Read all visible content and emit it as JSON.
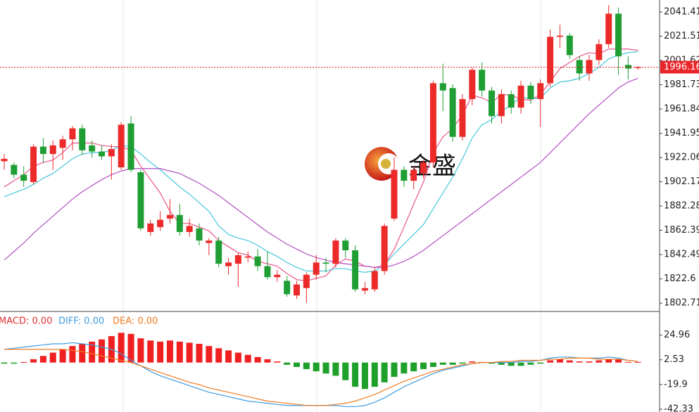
{
  "chart_data": [
    {
      "type": "candlestick",
      "watermark": "金盛",
      "up_color": "#ec2a2a",
      "down_color": "#1f9e34",
      "ylim": [
        1797.6,
        2051.2
      ],
      "yticks": [
        2041.41,
        2021.51,
        2001.62,
        1981.73,
        1961.84,
        1941.95,
        1922.06,
        1902.17,
        1882.28,
        1862.39,
        1842.49,
        1822.6,
        1802.71
      ],
      "grid": true,
      "last_price": 1996.16,
      "open": [
        1919,
        1916,
        1908,
        1902,
        1931,
        1925,
        1930,
        1937,
        1946,
        1932,
        1927,
        1923,
        1914,
        1950,
        1910,
        1861,
        1865,
        1872,
        1875,
        1861,
        1864,
        1852,
        1854,
        1833,
        1835,
        1840,
        1841,
        1833,
        1824,
        1821,
        1809,
        1815,
        1826,
        1836,
        1835,
        1854,
        1846,
        1813,
        1814,
        1829,
        1872,
        1912,
        1903,
        1909,
        1918,
        1983,
        1979,
        1939,
        1970,
        1994,
        1977,
        1956,
        1974,
        1963,
        1981,
        1970,
        1983,
        2021,
        2022,
        2002,
        1991,
        2002,
        2015,
        2040,
        1998,
        1995.5
      ],
      "high": [
        1925,
        1918,
        1915,
        1933,
        1938,
        1936,
        1940,
        1948,
        1949,
        1936,
        1932,
        1933,
        1951,
        1956,
        1912,
        1871,
        1878,
        1888,
        1884,
        1872,
        1868,
        1856,
        1857,
        1840,
        1844,
        1845,
        1847,
        1845,
        1830,
        1825,
        1821,
        1828,
        1842,
        1840,
        1856,
        1856,
        1850,
        1820,
        1832,
        1868,
        1922,
        1915,
        1915,
        1920,
        1985,
        1999,
        1982,
        1974,
        1996,
        2000,
        1980,
        1978,
        1977,
        1985,
        1984,
        1986,
        2027,
        2031,
        2024,
        2005,
        2006,
        2019,
        2047,
        2045,
        2005,
        1997
      ],
      "low": [
        1912,
        1905,
        1898,
        1900,
        1918,
        1912,
        1920,
        1928,
        1924,
        1922,
        1920,
        1904,
        1912,
        1910,
        1862,
        1858,
        1862,
        1868,
        1858,
        1857,
        1850,
        1842,
        1832,
        1826,
        1816,
        1836,
        1829,
        1822,
        1820,
        1808,
        1806,
        1803,
        1822,
        1828,
        1832,
        1840,
        1812,
        1810,
        1812,
        1826,
        1870,
        1898,
        1896,
        1905,
        1914,
        1960,
        1935,
        1936,
        1965,
        1972,
        1950,
        1950,
        1958,
        1958,
        1966,
        1947,
        1980,
        2012,
        2003,
        1985,
        1985,
        1998,
        2012,
        1990,
        1986,
        1994
      ],
      "close": [
        1921,
        1908,
        1903,
        1931,
        1925,
        1932,
        1937,
        1946,
        1928,
        1927,
        1923,
        1929,
        1949,
        1912,
        1864,
        1868,
        1871,
        1875,
        1861,
        1866,
        1854,
        1854,
        1835,
        1836,
        1842,
        1841,
        1833,
        1824,
        1826,
        1810,
        1818,
        1826,
        1836,
        1835,
        1854,
        1846,
        1814,
        1815,
        1829,
        1866,
        1912,
        1903,
        1912,
        1918,
        1983,
        1977,
        1939,
        1970,
        1994,
        1977,
        1956,
        1974,
        1963,
        1981,
        1970,
        1983,
        2021,
        2022,
        2006,
        1991,
        2002,
        2015,
        2040,
        2005,
        1995,
        1996.16
      ],
      "ma": [
        {
          "color": "#e8558a",
          "values": [
            1898,
            1903,
            1908,
            1915,
            1918,
            1920,
            1926,
            1934,
            1934,
            1934,
            1932,
            1931,
            1931,
            1928,
            1915,
            1904,
            1893,
            1878,
            1868,
            1868,
            1865,
            1862,
            1854,
            1849,
            1844,
            1842,
            1837,
            1835,
            1833,
            1827,
            1822,
            1821,
            1823,
            1825,
            1834,
            1839,
            1837,
            1833,
            1832,
            1834,
            1847,
            1865,
            1884,
            1902,
            1926,
            1939,
            1946,
            1957,
            1973,
            1971,
            1967,
            1974,
            1973,
            1970,
            1969,
            1974,
            1984,
            1995,
            2000,
            2005,
            2008,
            2007,
            2011,
            2011,
            2011,
            2010
          ]
        },
        {
          "color": "#45c6da",
          "values": [
            1890,
            1893,
            1896,
            1900,
            1905,
            1909,
            1915,
            1921,
            1925,
            1926,
            1926,
            1928,
            1932,
            1931,
            1925,
            1918,
            1912,
            1905,
            1898,
            1892,
            1885,
            1878,
            1866,
            1859,
            1856,
            1854,
            1850,
            1845,
            1841,
            1836,
            1832,
            1829,
            1829,
            1829,
            1831,
            1831,
            1829,
            1828,
            1829,
            1834,
            1843,
            1851,
            1859,
            1867,
            1880,
            1893,
            1906,
            1921,
            1938,
            1949,
            1953,
            1960,
            1965,
            1972,
            1970,
            1971,
            1979,
            1984,
            1985,
            1987,
            1991,
            1996,
            2003,
            2006,
            2008,
            2009
          ]
        },
        {
          "color": "#b24fc2",
          "values": [
            1838,
            1845,
            1852,
            1860,
            1867,
            1874,
            1881,
            1888,
            1894,
            1899,
            1904,
            1908,
            1911,
            1913,
            1913,
            1913,
            1913,
            1911,
            1909,
            1905,
            1901,
            1896,
            1891,
            1885,
            1879,
            1873,
            1867,
            1861,
            1856,
            1851,
            1847,
            1843,
            1840,
            1838,
            1836,
            1835,
            1834,
            1833,
            1832,
            1832,
            1834,
            1837,
            1841,
            1846,
            1852,
            1858,
            1864,
            1870,
            1876,
            1882,
            1888,
            1894,
            1900,
            1906,
            1912,
            1918,
            1926,
            1934,
            1942,
            1950,
            1958,
            1965,
            1972,
            1979,
            1984,
            1987
          ]
        }
      ]
    },
    {
      "type": "macd",
      "legend": [
        {
          "text": "MACD: 0.00",
          "color": "#e03030"
        },
        {
          "text": "DIFF: 0.00",
          "color": "#3d9be0"
        },
        {
          "text": "DEA: 0.00",
          "color": "#f07a20"
        }
      ],
      "ylim": [
        -44.9,
        45.1
      ],
      "yticks": [
        24.96,
        2.53,
        -19.9,
        -42.33
      ],
      "grid": true,
      "up_color": "#f02020",
      "down_color": "#1fa02a",
      "hist": [
        -1,
        -1,
        0.5,
        3,
        6,
        9,
        12,
        15,
        17,
        19,
        21,
        24,
        27,
        26,
        22,
        20,
        19,
        20,
        19,
        18,
        17,
        15,
        13,
        11,
        9,
        7,
        5,
        3,
        1,
        -2,
        -4,
        -6,
        -8,
        -10,
        -12,
        -16,
        -22,
        -24,
        -22,
        -18,
        -13,
        -10,
        -8,
        -6,
        -4,
        -2,
        -2,
        -1,
        1,
        0.5,
        -1,
        -2,
        -3,
        -3,
        -2,
        -1,
        2,
        3,
        2,
        1,
        1,
        2,
        3,
        3,
        0.5,
        0.5
      ],
      "diff": {
        "color": "#3d9be0",
        "values": [
          12,
          13,
          14,
          15,
          16,
          17,
          17,
          18,
          17,
          16,
          14,
          12,
          8,
          2,
          -3,
          -8,
          -12,
          -15,
          -18,
          -21,
          -24,
          -27,
          -29,
          -31,
          -33,
          -35,
          -36,
          -37,
          -38,
          -39,
          -39,
          -39,
          -39,
          -39,
          -39,
          -40,
          -40,
          -39,
          -36,
          -32,
          -27,
          -22,
          -18,
          -14,
          -10,
          -7,
          -5,
          -3,
          -1,
          0,
          0,
          0,
          0,
          1,
          1,
          2,
          4,
          5,
          5,
          4,
          4,
          4,
          5,
          4,
          2,
          1
        ]
      },
      "dea": {
        "color": "#f07a20",
        "values": [
          12,
          12,
          12,
          12,
          12,
          12,
          12,
          11,
          10,
          8,
          6,
          4,
          2,
          0,
          -3,
          -6,
          -9,
          -12,
          -15,
          -18,
          -20,
          -23,
          -25,
          -27,
          -29,
          -31,
          -33,
          -35,
          -36,
          -37,
          -38,
          -39,
          -39,
          -39,
          -38,
          -37,
          -35,
          -32,
          -29,
          -25,
          -21,
          -17,
          -14,
          -11,
          -8,
          -6,
          -4,
          -2,
          -1,
          0,
          0,
          1,
          1,
          2,
          2,
          2,
          3,
          3,
          4,
          4,
          4,
          3,
          3,
          3,
          2,
          1
        ]
      }
    }
  ]
}
